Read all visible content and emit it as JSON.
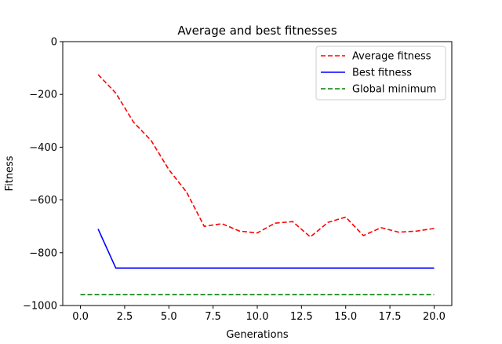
{
  "chart_data": {
    "type": "line",
    "title": "Average and best fitnesses",
    "xlabel": "Generations",
    "ylabel": "Fitness",
    "xlim": [
      -1.0,
      21.0
    ],
    "ylim": [
      -1000,
      0
    ],
    "xticks": [
      0.0,
      2.5,
      5.0,
      7.5,
      10.0,
      12.5,
      15.0,
      17.5,
      20.0
    ],
    "xtick_labels": [
      "0.0",
      "2.5",
      "5.0",
      "7.5",
      "10.0",
      "12.5",
      "15.0",
      "17.5",
      "20.0"
    ],
    "yticks": [
      0,
      -200,
      -400,
      -600,
      -800,
      -1000
    ],
    "ytick_labels": [
      "0",
      "−200",
      "−400",
      "−600",
      "−800",
      "−1000"
    ],
    "grid": false,
    "legend_position": "upper right",
    "series": [
      {
        "name": "Average fitness",
        "color": "#ff0000",
        "dashed": true,
        "x": [
          1,
          2,
          3,
          4,
          5,
          6,
          7,
          8,
          9,
          10,
          11,
          12,
          13,
          14,
          15,
          16,
          17,
          18,
          19,
          20
        ],
        "values": [
          -125,
          -195,
          -305,
          -375,
          -485,
          -570,
          -700,
          -690,
          -718,
          -725,
          -688,
          -682,
          -740,
          -685,
          -665,
          -735,
          -705,
          -722,
          -718,
          -708
        ]
      },
      {
        "name": "Best fitness",
        "color": "#0000ff",
        "dashed": false,
        "x": [
          1,
          2,
          3,
          4,
          5,
          6,
          7,
          8,
          9,
          10,
          11,
          12,
          13,
          14,
          15,
          16,
          17,
          18,
          19,
          20
        ],
        "values": [
          -710,
          -858,
          -858,
          -858,
          -858,
          -858,
          -858,
          -858,
          -858,
          -858,
          -858,
          -858,
          -858,
          -858,
          -858,
          -858,
          -858,
          -858,
          -858,
          -858
        ]
      },
      {
        "name": "Global minimum",
        "color": "#008000",
        "dashed": true,
        "x": [
          0,
          20
        ],
        "values": [
          -959,
          -959
        ]
      }
    ]
  }
}
